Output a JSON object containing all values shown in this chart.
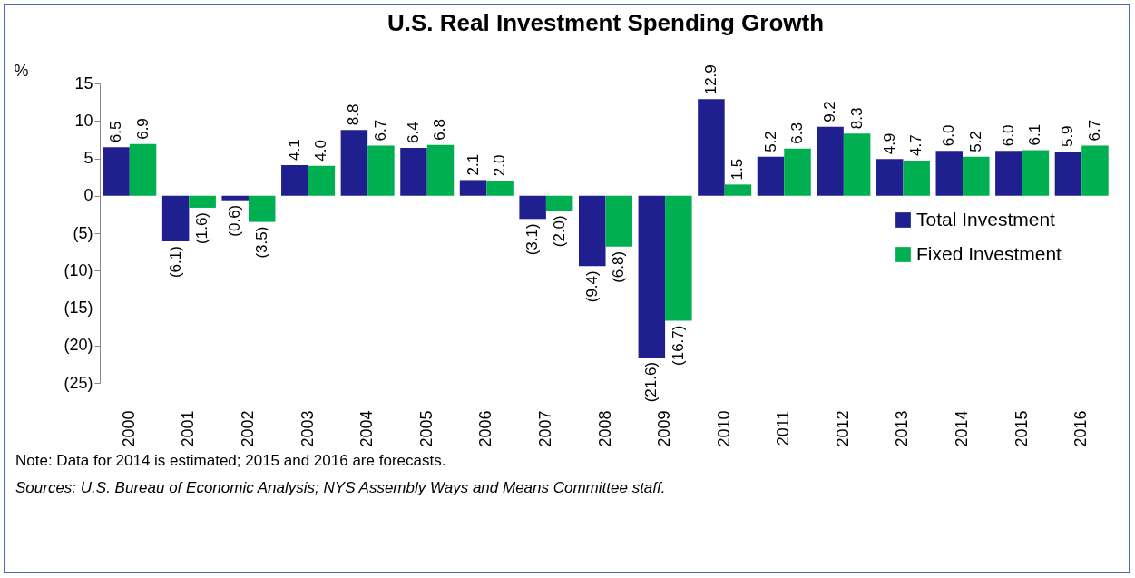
{
  "chart_data": {
    "type": "bar",
    "title": "U.S. Real Investment Spending  Growth",
    "ylabel": "%",
    "categories": [
      "2000",
      "2001",
      "2002",
      "2003",
      "2004",
      "2005",
      "2006",
      "2007",
      "2008",
      "2009",
      "2010",
      "2011",
      "2012",
      "2013",
      "2014",
      "2015",
      "2016"
    ],
    "series": [
      {
        "name": "Total Investment",
        "color": "#1f1f8f",
        "values": [
          6.5,
          -6.1,
          -0.6,
          4.1,
          8.8,
          6.4,
          2.1,
          -3.1,
          -9.4,
          -21.6,
          12.9,
          5.2,
          9.2,
          4.9,
          6.0,
          6.0,
          5.9
        ],
        "value_labels": [
          "6.5",
          "(6.1)",
          "(0.6)",
          "4.1",
          "8.8",
          "6.4",
          "2.1",
          "(3.1)",
          "(9.4)",
          "(21.6)",
          "12.9",
          "5.2",
          "9.2",
          "4.9",
          "6.0",
          "6.0",
          "5.9"
        ]
      },
      {
        "name": "Fixed Investment",
        "color": "#00b050",
        "values": [
          6.9,
          -1.6,
          -3.5,
          4.0,
          6.7,
          6.8,
          2.0,
          -2.0,
          -6.8,
          -16.7,
          1.5,
          6.3,
          8.3,
          4.7,
          5.2,
          6.1,
          6.7
        ],
        "value_labels": [
          "6.9",
          "(1.6)",
          "(3.5)",
          "4.0",
          "6.7",
          "6.8",
          "2.0",
          "(2.0)",
          "(6.8)",
          "(16.7)",
          "1.5",
          "6.3",
          "8.3",
          "4.7",
          "5.2",
          "6.1",
          "6.7"
        ]
      }
    ],
    "ylim": [
      -25,
      15
    ],
    "yticks": [
      15,
      10,
      5,
      0,
      {
        "value": -5,
        "label": "(5)"
      },
      {
        "value": -10,
        "label": "(10)"
      },
      {
        "value": -15,
        "label": "(15)"
      },
      {
        "value": -20,
        "label": "(20)"
      },
      {
        "value": -25,
        "label": "(25)"
      }
    ],
    "grid": false,
    "legend": "right",
    "annotations": [
      "Note: Data for 2014 is estimated; 2015 and 2016 are forecasts.",
      "Sources: U.S. Bureau of Economic Analysis; NYS Assembly Ways and Means Committee staff."
    ]
  }
}
